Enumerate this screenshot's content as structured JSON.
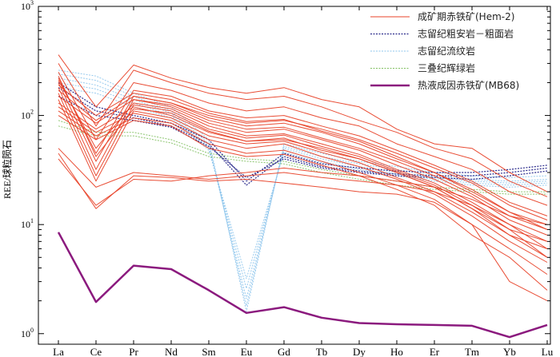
{
  "chart_data": {
    "type": "line",
    "title": "",
    "xlabel": "",
    "ylabel": "REE/球粒陨石",
    "y_scale": "log",
    "ylim": [
      0.8,
      1000
    ],
    "y_ticks": [
      {
        "base": "10",
        "exp": "0"
      },
      {
        "base": "10",
        "exp": "1"
      },
      {
        "base": "10",
        "exp": "2"
      },
      {
        "base": "10",
        "exp": "3"
      }
    ],
    "categories": [
      "La",
      "Ce",
      "Pr",
      "Nd",
      "Sm",
      "Eu",
      "Gd",
      "Tb",
      "Dy",
      "Ho",
      "Er",
      "Tm",
      "Yb",
      "Lu"
    ],
    "legend": {
      "position": "top-right"
    },
    "colors": {
      "hematite_ore": "#e8432a",
      "trachyandesite": "#2b2b8c",
      "rhyolite": "#8cc4ec",
      "diabase": "#7fbf5f",
      "hydrothermal": "#8b1a7e"
    },
    "series": [
      {
        "group": "hem",
        "name": "成矿期赤铁矿(Hem-2)",
        "values": [
          360,
          120,
          290,
          220,
          180,
          160,
          180,
          140,
          120,
          75,
          55,
          50,
          30,
          20
        ],
        "legend": true
      },
      {
        "group": "hem",
        "values": [
          300,
          80,
          260,
          200,
          160,
          140,
          150,
          120,
          90,
          70,
          50,
          40,
          25,
          18
        ]
      },
      {
        "group": "hem",
        "values": [
          250,
          60,
          200,
          170,
          130,
          110,
          120,
          95,
          80,
          55,
          42,
          32,
          20,
          15
        ]
      },
      {
        "group": "hem",
        "values": [
          220,
          45,
          170,
          150,
          110,
          95,
          100,
          80,
          65,
          48,
          35,
          25,
          16,
          12
        ]
      },
      {
        "group": "hem",
        "values": [
          200,
          38,
          150,
          130,
          95,
          80,
          85,
          70,
          55,
          40,
          30,
          20,
          13,
          10
        ]
      },
      {
        "group": "hem",
        "values": [
          180,
          32,
          140,
          120,
          85,
          70,
          75,
          60,
          48,
          35,
          26,
          18,
          11,
          8
        ]
      },
      {
        "group": "hem",
        "values": [
          160,
          28,
          125,
          110,
          75,
          62,
          66,
          52,
          42,
          31,
          23,
          15,
          9,
          7
        ]
      },
      {
        "group": "hem",
        "values": [
          140,
          25,
          110,
          95,
          65,
          55,
          58,
          46,
          37,
          27,
          20,
          13,
          8,
          6
        ]
      },
      {
        "group": "hem",
        "values": [
          130,
          75,
          120,
          100,
          70,
          58,
          62,
          48,
          40,
          30,
          22,
          14,
          9,
          5
        ]
      },
      {
        "group": "hem",
        "values": [
          120,
          70,
          105,
          90,
          60,
          50,
          55,
          42,
          34,
          26,
          19,
          12,
          7,
          4.5
        ]
      },
      {
        "group": "hem",
        "values": [
          110,
          65,
          95,
          85,
          55,
          45,
          48,
          38,
          30,
          23,
          17,
          10,
          6,
          3.5
        ]
      },
      {
        "group": "hem",
        "values": [
          100,
          60,
          90,
          80,
          50,
          42,
          44,
          35,
          28,
          21,
          15,
          8,
          5,
          2.5
        ]
      },
      {
        "group": "hem",
        "values": [
          170,
          90,
          150,
          130,
          100,
          85,
          90,
          75,
          60,
          45,
          33,
          24,
          15,
          11
        ]
      },
      {
        "group": "hem",
        "values": [
          190,
          100,
          160,
          140,
          105,
          88,
          92,
          72,
          58,
          42,
          30,
          21,
          13,
          9
        ]
      },
      {
        "group": "hem",
        "values": [
          150,
          85,
          140,
          125,
          90,
          75,
          78,
          62,
          50,
          38,
          28,
          19,
          12,
          10
        ]
      },
      {
        "group": "hem",
        "values": [
          45,
          14,
          28,
          27,
          25,
          26,
          24,
          22,
          20,
          19,
          16,
          10,
          3,
          2
        ]
      },
      {
        "group": "hem",
        "values": [
          40,
          15,
          26,
          25,
          28,
          30,
          33,
          30,
          28,
          25,
          22,
          17,
          12,
          9
        ]
      },
      {
        "group": "hem",
        "values": [
          50,
          22,
          30,
          28,
          26,
          28,
          30,
          27,
          25,
          23,
          20,
          15,
          10,
          7
        ]
      },
      {
        "group": "hem",
        "values": [
          210,
          50,
          130,
          115,
          80,
          65,
          68,
          55,
          44,
          32,
          24,
          16,
          10,
          6
        ]
      },
      {
        "group": "hem",
        "values": [
          230,
          42,
          115,
          105,
          72,
          58,
          60,
          50,
          40,
          30,
          22,
          14,
          8,
          5
        ]
      },
      {
        "group": "tra",
        "name": "志留纪粗安岩－粗面岩",
        "values": [
          200,
          120,
          100,
          85,
          60,
          25,
          45,
          36,
          33,
          31,
          30,
          30,
          32,
          35
        ],
        "legend": true
      },
      {
        "group": "tra",
        "values": [
          180,
          110,
          95,
          80,
          55,
          23,
          42,
          34,
          31,
          29,
          28,
          28,
          30,
          33
        ]
      },
      {
        "group": "tra",
        "values": [
          150,
          100,
          90,
          78,
          52,
          27,
          40,
          33,
          30,
          28,
          27,
          26,
          28,
          31
        ]
      },
      {
        "group": "rhy",
        "name": "志留纪流纹岩",
        "values": [
          260,
          230,
          160,
          120,
          60,
          1.6,
          55,
          45,
          38,
          34,
          30,
          28,
          27,
          28
        ],
        "legend": true
      },
      {
        "group": "rhy",
        "values": [
          240,
          210,
          150,
          110,
          55,
          1.8,
          52,
          42,
          36,
          32,
          28,
          26,
          25,
          26
        ]
      },
      {
        "group": "rhy",
        "values": [
          220,
          190,
          140,
          105,
          52,
          2.1,
          50,
          40,
          34,
          30,
          27,
          25,
          24,
          25
        ]
      },
      {
        "group": "rhy",
        "values": [
          200,
          175,
          130,
          100,
          50,
          2.6,
          48,
          38,
          32,
          29,
          26,
          24,
          23,
          24
        ]
      },
      {
        "group": "rhy",
        "values": [
          180,
          160,
          120,
          95,
          48,
          3.2,
          46,
          37,
          31,
          28,
          25,
          23,
          22,
          23
        ]
      },
      {
        "group": "dia",
        "name": "三叠纪辉绿岩",
        "values": [
          90,
          70,
          70,
          60,
          45,
          40,
          38,
          32,
          28,
          25,
          22,
          21,
          20,
          20
        ],
        "legend": true
      },
      {
        "group": "dia",
        "values": [
          80,
          65,
          65,
          56,
          42,
          38,
          36,
          30,
          26,
          23,
          21,
          20,
          19,
          19
        ]
      },
      {
        "group": "hyd",
        "name": "热液成因赤铁矿(MB68)",
        "values": [
          8.5,
          1.95,
          4.2,
          3.9,
          2.5,
          1.55,
          1.75,
          1.4,
          1.25,
          1.22,
          1.2,
          1.18,
          0.93,
          1.2
        ],
        "legend": true
      }
    ]
  }
}
